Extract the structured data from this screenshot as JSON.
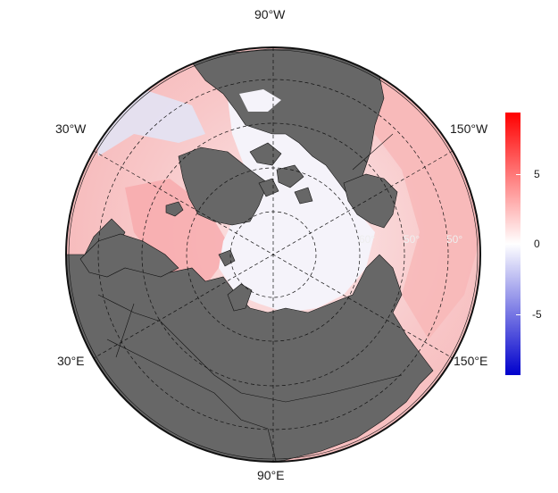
{
  "map": {
    "projection": "north-polar-stereographic",
    "longitude_labels": {
      "top": "90°W",
      "upper_left": "30°W",
      "upper_right": "150°W",
      "lower_left": "30°E",
      "lower_right": "150°E",
      "bottom": "90°E"
    },
    "inner_ring_labels": [
      "60°",
      "50°",
      "50°"
    ]
  },
  "legend": {
    "ticks": [
      "5",
      "0",
      "-5"
    ],
    "tick_values": [
      5,
      0,
      -5
    ],
    "range": [
      -9,
      9
    ],
    "colors": {
      "high": "#ff0000",
      "mid": "#ffffff",
      "low": "#0000cc"
    }
  },
  "colors": {
    "land": "#676767",
    "ocean_warm": "#f7c3c3",
    "ice": "#f5f3fa"
  }
}
